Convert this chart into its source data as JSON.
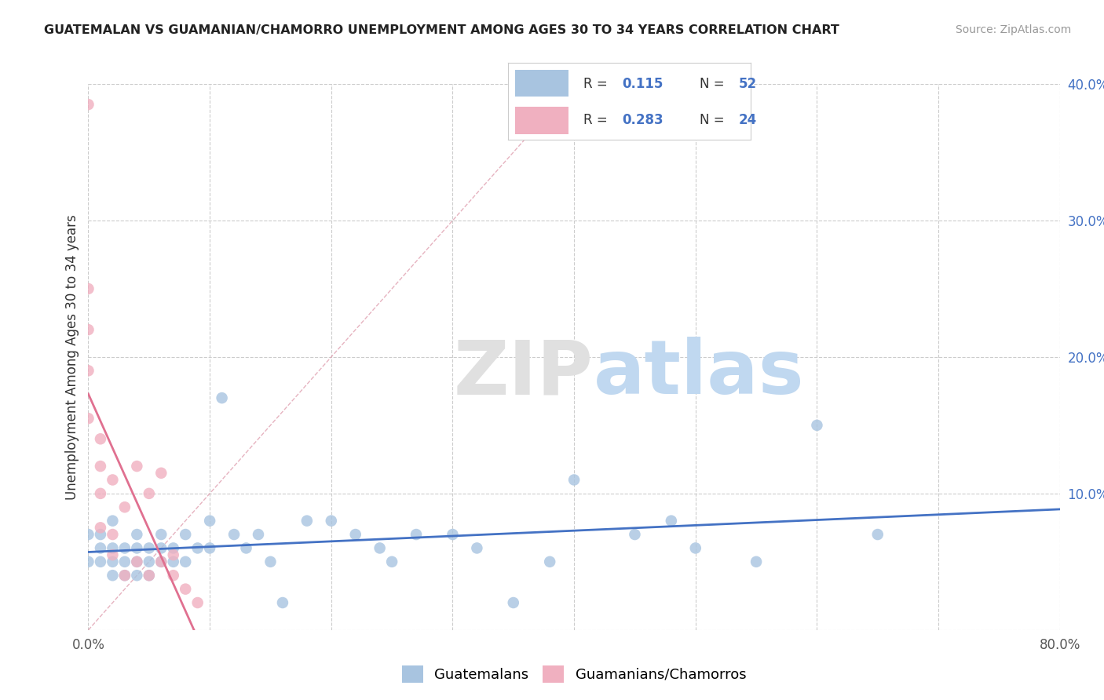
{
  "title": "GUATEMALAN VS GUAMANIAN/CHAMORRO UNEMPLOYMENT AMONG AGES 30 TO 34 YEARS CORRELATION CHART",
  "source": "Source: ZipAtlas.com",
  "ylabel": "Unemployment Among Ages 30 to 34 years",
  "xlim": [
    0,
    0.8
  ],
  "ylim": [
    0,
    0.4
  ],
  "xticks": [
    0.0,
    0.1,
    0.2,
    0.3,
    0.4,
    0.5,
    0.6,
    0.7,
    0.8
  ],
  "yticks": [
    0.0,
    0.1,
    0.2,
    0.3,
    0.4
  ],
  "r_guatemalan": 0.115,
  "n_guatemalan": 52,
  "r_guamanian": 0.283,
  "n_guamanian": 24,
  "color_guatemalan": "#a8c4e0",
  "color_guamanian": "#f0b0c0",
  "line_color_guatemalan": "#4472c4",
  "line_color_guamanian": "#e07090",
  "diag_color": "#e0a0b0",
  "guatemalan_x": [
    0.0,
    0.0,
    0.01,
    0.01,
    0.01,
    0.02,
    0.02,
    0.02,
    0.02,
    0.03,
    0.03,
    0.03,
    0.04,
    0.04,
    0.04,
    0.04,
    0.05,
    0.05,
    0.05,
    0.06,
    0.06,
    0.06,
    0.07,
    0.07,
    0.08,
    0.08,
    0.09,
    0.1,
    0.1,
    0.11,
    0.12,
    0.13,
    0.14,
    0.15,
    0.16,
    0.18,
    0.2,
    0.22,
    0.24,
    0.25,
    0.27,
    0.3,
    0.32,
    0.35,
    0.38,
    0.4,
    0.45,
    0.48,
    0.5,
    0.55,
    0.6,
    0.65
  ],
  "guatemalan_y": [
    0.05,
    0.07,
    0.05,
    0.06,
    0.07,
    0.04,
    0.05,
    0.06,
    0.08,
    0.04,
    0.05,
    0.06,
    0.04,
    0.05,
    0.06,
    0.07,
    0.04,
    0.05,
    0.06,
    0.05,
    0.06,
    0.07,
    0.05,
    0.06,
    0.05,
    0.07,
    0.06,
    0.06,
    0.08,
    0.17,
    0.07,
    0.06,
    0.07,
    0.05,
    0.02,
    0.08,
    0.08,
    0.07,
    0.06,
    0.05,
    0.07,
    0.07,
    0.06,
    0.02,
    0.05,
    0.11,
    0.07,
    0.08,
    0.06,
    0.05,
    0.15,
    0.07
  ],
  "guamanian_x": [
    0.0,
    0.0,
    0.0,
    0.0,
    0.0,
    0.01,
    0.01,
    0.01,
    0.01,
    0.02,
    0.02,
    0.02,
    0.03,
    0.03,
    0.04,
    0.04,
    0.05,
    0.05,
    0.06,
    0.06,
    0.07,
    0.07,
    0.08,
    0.09
  ],
  "guamanian_y": [
    0.385,
    0.25,
    0.22,
    0.19,
    0.155,
    0.14,
    0.12,
    0.1,
    0.075,
    0.11,
    0.07,
    0.055,
    0.09,
    0.04,
    0.12,
    0.05,
    0.04,
    0.1,
    0.05,
    0.115,
    0.04,
    0.055,
    0.03,
    0.02
  ]
}
